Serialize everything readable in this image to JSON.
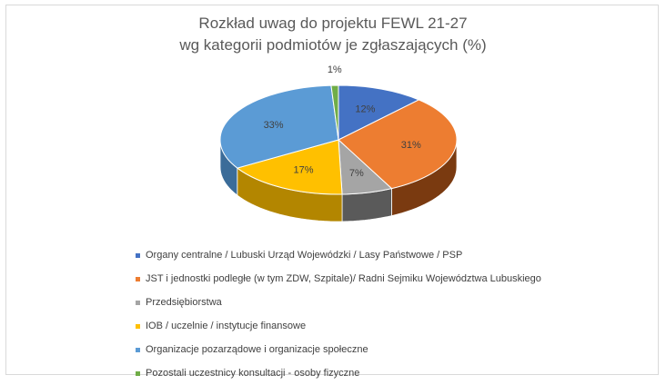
{
  "chart_data": {
    "type": "pie",
    "title_lines": [
      "Rozkład uwag do projektu FEWL 21-27",
      "wg kategorii podmiotów je zgłaszających (%)"
    ],
    "legend_position": "bottom",
    "slices": [
      {
        "label": "Organy centralne / Lubuski Urząd Wojewódzki / Lasy Państwowe / PSP",
        "value": 12,
        "value_label": "12%",
        "color": "#4472C4",
        "side": "#2F528F"
      },
      {
        "label": "JST i jednostki podległe (w tym ZDW, Szpitale)/ Radni Sejmiku Województwa Lubuskiego",
        "value": 31,
        "value_label": "31%",
        "color": "#ED7D31",
        "side": "#7A3A10"
      },
      {
        "label": "Przedsiębiorstwa",
        "value": 7,
        "value_label": "7%",
        "color": "#A5A5A5",
        "side": "#5A5A5A"
      },
      {
        "label": "IOB / uczelnie / instytucje finansowe",
        "value": 17,
        "value_label": "17%",
        "color": "#FFC000",
        "side": "#B38600"
      },
      {
        "label": "Organizacje pozarządowe i organizacje społeczne",
        "value": 33,
        "value_label": "33%",
        "color": "#5B9BD5",
        "side": "#3B6C99"
      },
      {
        "label": "Pozostali uczestnicy konsultacji - osoby fizyczne",
        "value": 1,
        "value_label": "1%",
        "color": "#70AD47",
        "side": "#4A7A2E"
      }
    ]
  }
}
